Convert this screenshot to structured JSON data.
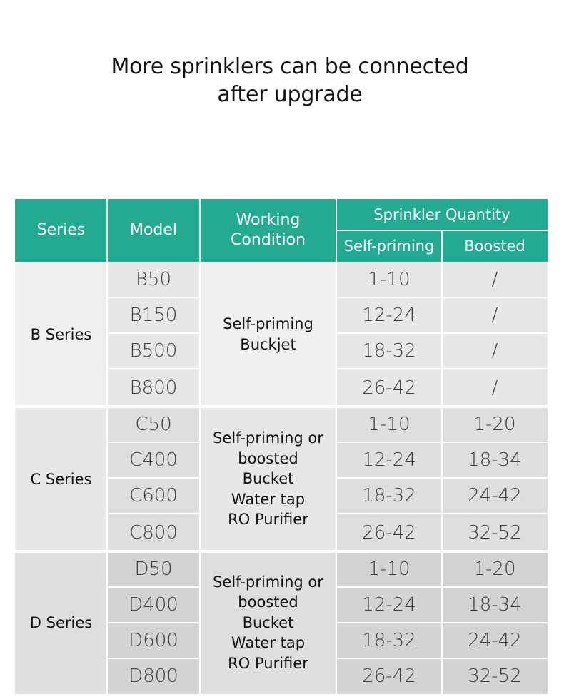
{
  "title": {
    "line1": "More sprinklers can be connected",
    "line2": "after upgrade"
  },
  "colors": {
    "header_bg": "#23aa90",
    "header_text": "#ffffff",
    "row_gray": "#e7e7e7"
  },
  "table": {
    "headers": {
      "series": "Series",
      "model": "Model",
      "condition_line1": "Working",
      "condition_line2": "Condition",
      "quantity": "Sprinkler Quantity",
      "self_priming": "Self-priming",
      "boosted": "Boosted"
    },
    "groups": [
      {
        "series": "B Series",
        "condition": [
          "Self-priming",
          "Buckjet"
        ],
        "rows": [
          {
            "model": "B50",
            "self_priming": "1-10",
            "boosted": "/"
          },
          {
            "model": "B150",
            "self_priming": "12-24",
            "boosted": "/"
          },
          {
            "model": "B500",
            "self_priming": "18-32",
            "boosted": "/"
          },
          {
            "model": "B800",
            "self_priming": "26-42",
            "boosted": "/"
          }
        ]
      },
      {
        "series": "C Series",
        "condition": [
          "Self-priming or",
          "boosted",
          "Bucket",
          "Water tap",
          "RO Purifier"
        ],
        "rows": [
          {
            "model": "C50",
            "self_priming": "1-10",
            "boosted": "1-20"
          },
          {
            "model": "C400",
            "self_priming": "12-24",
            "boosted": "18-34"
          },
          {
            "model": "C600",
            "self_priming": "18-32",
            "boosted": "24-42"
          },
          {
            "model": "C800",
            "self_priming": "26-42",
            "boosted": "32-52"
          }
        ]
      },
      {
        "series": "D Series",
        "condition": [
          "Self-priming or",
          "boosted",
          "Bucket",
          "Water tap",
          "RO Purifier"
        ],
        "rows": [
          {
            "model": "D50",
            "self_priming": "1-10",
            "boosted": "1-20"
          },
          {
            "model": "D400",
            "self_priming": "12-24",
            "boosted": "18-34"
          },
          {
            "model": "D600",
            "self_priming": "18-32",
            "boosted": "24-42"
          },
          {
            "model": "D800",
            "self_priming": "26-42",
            "boosted": "32-52"
          }
        ]
      }
    ]
  }
}
